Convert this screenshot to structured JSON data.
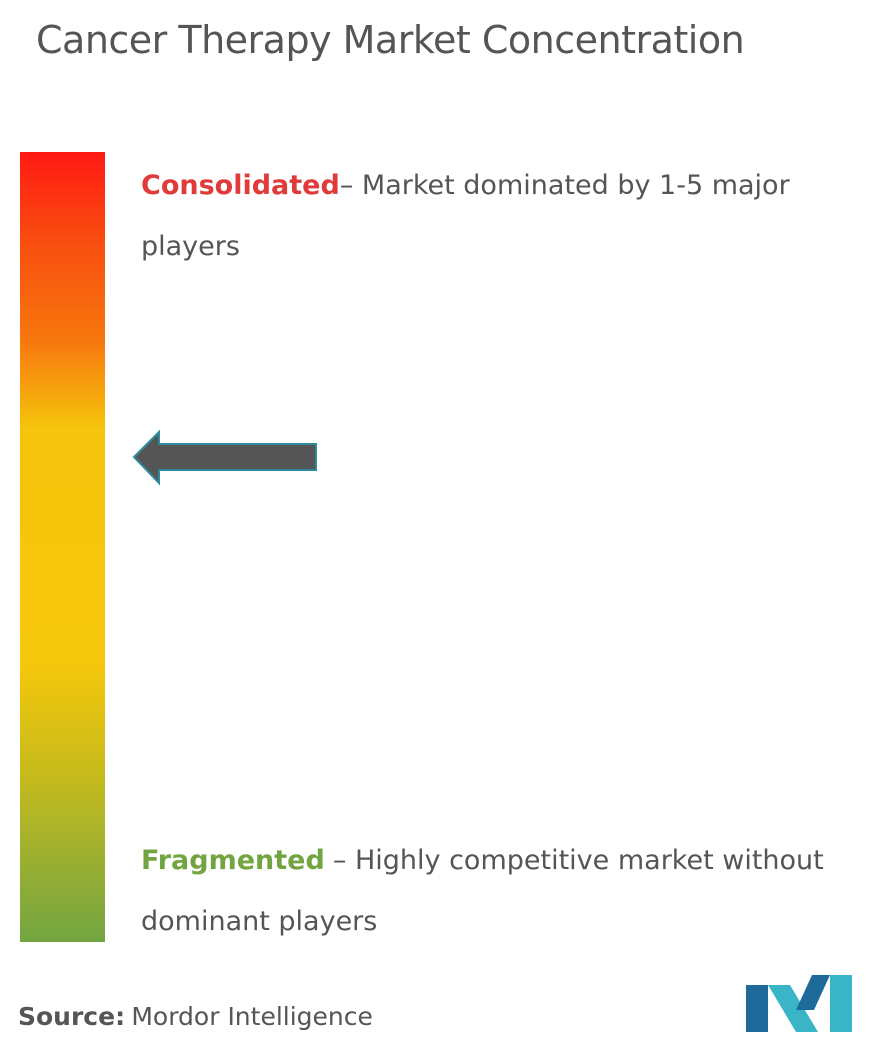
{
  "title": "Cancer Therapy Market Concentration",
  "consolidated": {
    "label": "Consolidated",
    "description": "– Market dominated by 1-5 major players"
  },
  "fragmented": {
    "label": "Fragmented",
    "description": "– Highly competitive market without dominant players"
  },
  "source": {
    "label": "Source:",
    "text": "Mordor Intelligence"
  }
}
